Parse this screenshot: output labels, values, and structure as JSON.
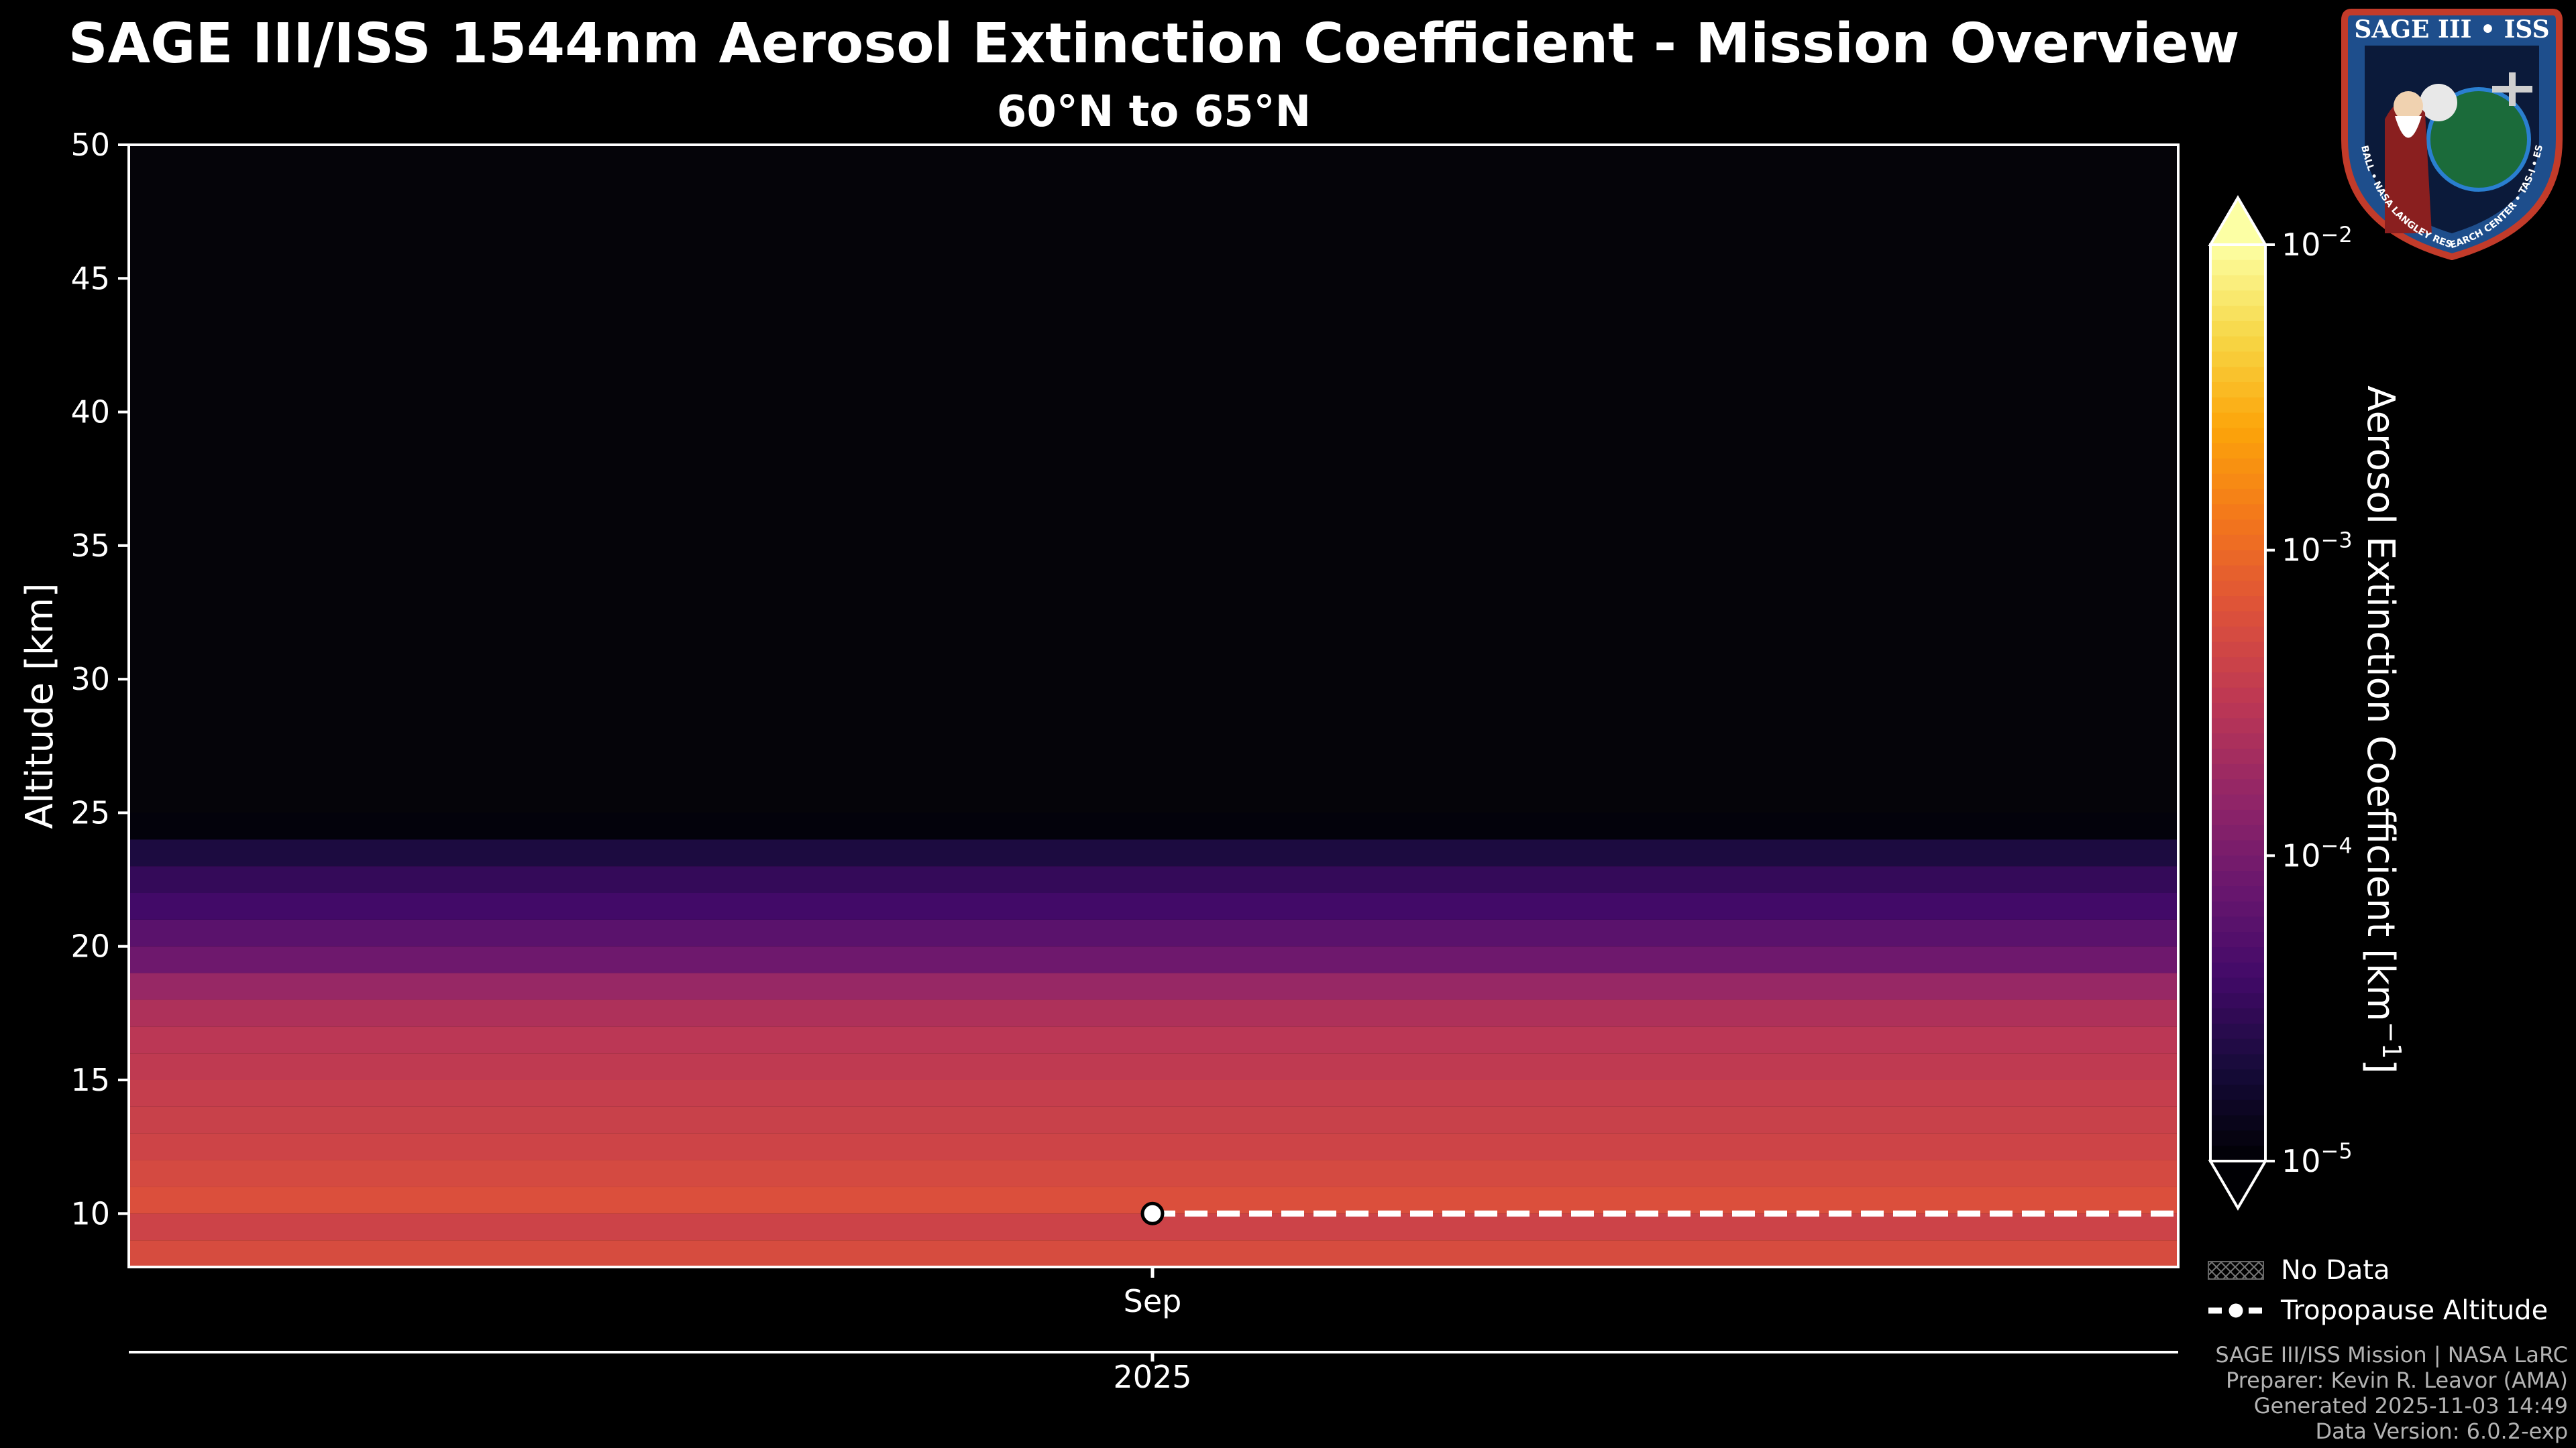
{
  "title": "SAGE III/ISS 1544nm Aerosol Extinction Coefficient - Mission Overview",
  "subtitle": "60°N to 65°N",
  "logo": {
    "top_text": "SAGE III • ISS",
    "ring_text": "BALL • NASA LANGLEY RESEARCH CENTER • TAS-I • ESA"
  },
  "chart_data": {
    "type": "heatmap",
    "ylabel": "Altitude [km]",
    "ylim": [
      8,
      50
    ],
    "yticks": [
      10,
      15,
      20,
      25,
      30,
      35,
      40,
      45,
      50
    ],
    "x_ticks": [
      {
        "label": "Sep",
        "year": "2025"
      }
    ],
    "profile": {
      "altitudes_km": [
        8.5,
        9.5,
        10.5,
        11.5,
        12.5,
        13.5,
        14.5,
        15.5,
        16.5,
        17.5,
        18.5,
        19.5,
        20.5,
        21.5,
        22.5,
        23.5,
        24.5
      ],
      "extinction_km-1": [
        0.00055,
        0.00044,
        0.0006,
        0.00052,
        0.00045,
        0.00041,
        0.00038,
        0.00034,
        0.00031,
        0.00025,
        0.00017,
        8.5e-05,
        6e-05,
        4e-05,
        3.2e-05,
        2.2e-05,
        1.1e-05
      ]
    },
    "tropopause": {
      "label": "Tropopause Altitude",
      "altitude_km": 10
    },
    "colorbar": {
      "label": "Aerosol Extinction Coefficient [km",
      "label_exponent": "−1",
      "label_end": "]",
      "scale": "log",
      "vmin": 1e-05,
      "vmax": 0.01,
      "ticks": [
        {
          "value": 0.01,
          "base": "10",
          "exp": "−2"
        },
        {
          "value": 0.001,
          "base": "10",
          "exp": "−3"
        },
        {
          "value": 0.0001,
          "base": "10",
          "exp": "−4"
        },
        {
          "value": 1e-05,
          "base": "10",
          "exp": "−5"
        }
      ],
      "colormap": "inferno"
    },
    "legend": [
      {
        "label": "No Data"
      },
      {
        "label": "Tropopause Altitude"
      }
    ]
  },
  "footer": [
    "SAGE III/ISS Mission | NASA LaRC",
    "Preparer: Kevin R. Leavor (AMA)",
    "Generated 2025-11-03 14:49",
    "Data Version: 6.0.2-exp"
  ]
}
